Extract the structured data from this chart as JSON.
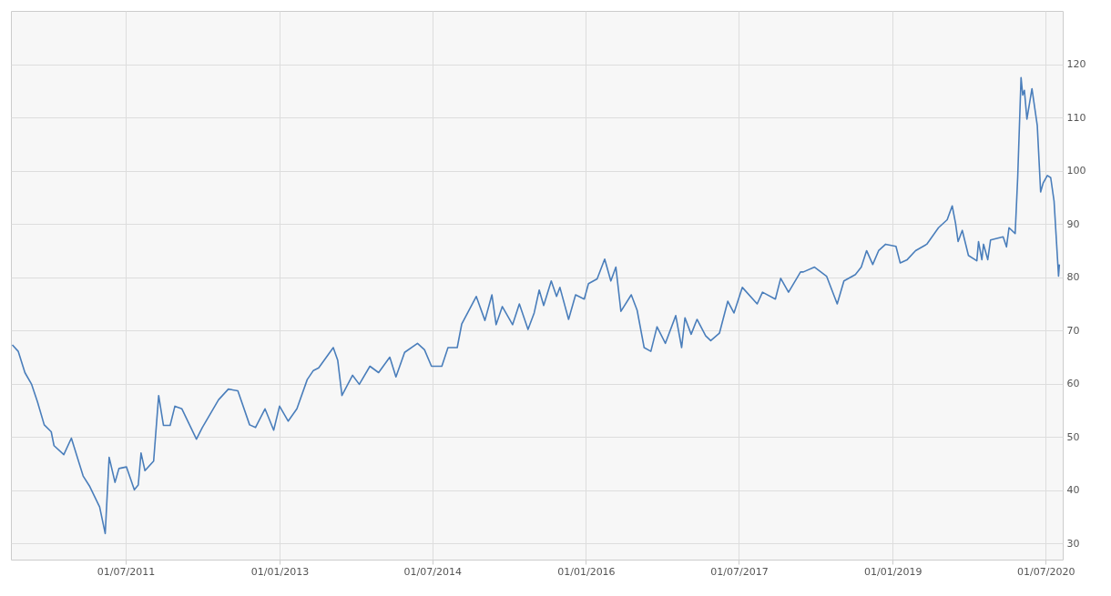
{
  "chart_data": {
    "type": "line",
    "x": [
      "2010-05-22",
      "2010-06-12",
      "2010-07-06",
      "2010-07-30",
      "2010-08-20",
      "2010-09-13",
      "2010-10-08",
      "2010-10-18",
      "2010-11-22",
      "2010-12-19",
      "2011-01-30",
      "2011-02-23",
      "2011-03-30",
      "2011-04-19",
      "2011-05-03",
      "2011-05-24",
      "2011-06-07",
      "2011-07-04",
      "2011-08-01",
      "2011-08-15",
      "2011-08-25",
      "2011-09-08",
      "2011-10-09",
      "2011-10-27",
      "2011-11-13",
      "2011-12-07",
      "2011-12-24",
      "2012-01-18",
      "2012-03-10",
      "2012-03-31",
      "2012-05-28",
      "2012-07-02",
      "2012-08-05",
      "2012-09-16",
      "2012-10-07",
      "2012-11-10",
      "2012-12-11",
      "2013-01-01",
      "2013-02-01",
      "2013-03-04",
      "2013-04-10",
      "2013-05-02",
      "2013-05-21",
      "2013-07-12",
      "2013-07-28",
      "2013-08-12",
      "2013-09-19",
      "2013-10-13",
      "2013-11-20",
      "2013-12-21",
      "2014-01-30",
      "2014-02-21",
      "2014-03-24",
      "2014-05-09",
      "2014-06-03",
      "2014-06-28",
      "2014-08-04",
      "2014-08-26",
      "2014-09-28",
      "2014-10-14",
      "2014-12-05",
      "2015-01-05",
      "2015-01-30",
      "2015-02-14",
      "2015-03-08",
      "2015-04-14",
      "2015-05-08",
      "2015-06-08",
      "2015-06-30",
      "2015-07-18",
      "2015-08-03",
      "2015-08-30",
      "2015-09-18",
      "2015-09-30",
      "2015-10-31",
      "2015-11-25",
      "2015-12-26",
      "2016-01-10",
      "2016-02-10",
      "2016-03-08",
      "2016-03-30",
      "2016-04-17",
      "2016-05-05",
      "2016-06-11",
      "2016-07-02",
      "2016-07-27",
      "2016-08-20",
      "2016-09-11",
      "2016-10-11",
      "2016-11-17",
      "2016-12-08",
      "2016-12-20",
      "2017-01-11",
      "2017-02-01",
      "2017-03-04",
      "2017-03-22",
      "2017-04-22",
      "2017-05-22",
      "2017-06-13",
      "2017-07-13",
      "2017-09-04",
      "2017-09-23",
      "2017-11-08",
      "2017-11-27",
      "2017-12-25",
      "2018-02-06",
      "2018-02-16",
      "2018-03-28",
      "2018-05-10",
      "2018-06-17",
      "2018-07-11",
      "2018-08-21",
      "2018-09-11",
      "2018-09-30",
      "2018-10-22",
      "2018-11-12",
      "2018-12-07",
      "2019-01-13",
      "2019-01-28",
      "2019-02-22",
      "2019-03-24",
      "2019-05-03",
      "2019-06-14",
      "2019-07-15",
      "2019-08-02",
      "2019-08-14",
      "2019-08-23",
      "2019-09-07",
      "2019-09-29",
      "2019-10-29",
      "2019-11-04",
      "2019-11-16",
      "2019-11-22",
      "2019-12-07",
      "2019-12-17",
      "2020-01-31",
      "2020-02-12",
      "2020-02-21",
      "2020-03-14",
      "2020-03-23",
      "2020-04-04",
      "2020-04-10",
      "2020-04-16",
      "2020-04-25",
      "2020-05-13",
      "2020-06-01",
      "2020-06-13",
      "2020-06-22",
      "2020-07-07",
      "2020-07-19",
      "2020-07-31",
      "2020-08-16",
      "2020-08-19"
    ],
    "series": [
      {
        "color": "#4a7ebb",
        "values": [
          67.3,
          66.1,
          62.1,
          59.9,
          56.6,
          52.3,
          51.0,
          48.4,
          46.7,
          49.8,
          42.7,
          40.7,
          36.9,
          31.9,
          46.2,
          41.5,
          44.1,
          44.4,
          40.1,
          41.0,
          47.0,
          43.7,
          45.5,
          57.8,
          52.2,
          52.2,
          55.8,
          55.3,
          49.6,
          51.8,
          57.0,
          59.0,
          58.7,
          52.3,
          51.8,
          55.3,
          51.3,
          55.8,
          53.0,
          55.3,
          60.8,
          62.5,
          63.0,
          66.8,
          64.4,
          57.8,
          61.6,
          59.9,
          63.3,
          62.1,
          65.0,
          61.3,
          65.9,
          67.6,
          66.4,
          63.3,
          63.3,
          66.8,
          66.8,
          71.2,
          76.4,
          71.9,
          76.7,
          71.1,
          74.5,
          71.1,
          75.0,
          70.2,
          73.3,
          77.6,
          74.7,
          79.3,
          76.4,
          78.1,
          72.1,
          76.7,
          75.9,
          78.8,
          79.7,
          83.4,
          79.3,
          81.9,
          73.6,
          76.7,
          73.8,
          66.8,
          66.1,
          70.7,
          67.6,
          72.8,
          66.8,
          72.4,
          69.3,
          72.1,
          69.0,
          68.1,
          69.5,
          75.5,
          73.3,
          78.1,
          75.0,
          77.2,
          75.9,
          79.8,
          77.2,
          81.0,
          81.0,
          81.9,
          80.2,
          75.0,
          79.3,
          80.5,
          81.9,
          85.0,
          82.4,
          85.0,
          86.2,
          85.8,
          82.7,
          83.3,
          85.0,
          86.2,
          89.3,
          90.8,
          93.4,
          90.1,
          86.7,
          88.8,
          84.1,
          83.1,
          86.7,
          83.3,
          86.2,
          83.3,
          87.0,
          87.6,
          85.7,
          89.3,
          88.2,
          98.7,
          117.5,
          114.2,
          115.1,
          109.7,
          115.4,
          108.5,
          96.0,
          97.7,
          99.1,
          98.7,
          94.3,
          80.2,
          82.4
        ]
      }
    ],
    "xlim": [
      "2010-05-17",
      "2020-08-31"
    ],
    "xticks": [
      {
        "value": "2011-07-01",
        "label": "01/07/2011"
      },
      {
        "value": "2013-01-01",
        "label": "01/01/2013"
      },
      {
        "value": "2014-07-01",
        "label": "01/07/2014"
      },
      {
        "value": "2016-01-01",
        "label": "01/01/2016"
      },
      {
        "value": "2017-07-01",
        "label": "01/07/2017"
      },
      {
        "value": "2019-01-01",
        "label": "01/01/2019"
      },
      {
        "value": "2020-07-01",
        "label": "01/07/2020"
      }
    ],
    "ylim": [
      27,
      130
    ],
    "yticks": [
      30,
      40,
      50,
      60,
      70,
      80,
      90,
      100,
      110,
      120
    ],
    "grid": true,
    "line_style": "solid",
    "marker": "none"
  }
}
